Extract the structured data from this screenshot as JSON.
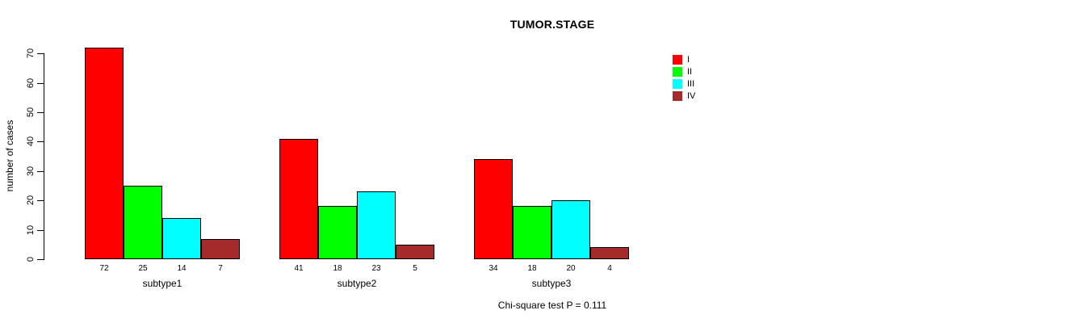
{
  "chart_data": {
    "type": "bar",
    "title": "TUMOR.STAGE",
    "ylabel": "number of cases",
    "xlabel": "",
    "footnote": "Chi-square test P = 0.111",
    "categories": [
      "subtype1",
      "subtype2",
      "subtype3"
    ],
    "series": [
      {
        "name": "I",
        "color": "#ff0000",
        "values": [
          72,
          41,
          34
        ]
      },
      {
        "name": "II",
        "color": "#00ff00",
        "values": [
          25,
          18,
          18
        ]
      },
      {
        "name": "III",
        "color": "#00ffff",
        "values": [
          14,
          23,
          20
        ]
      },
      {
        "name": "IV",
        "color": "#a52a2a",
        "values": [
          7,
          5,
          4
        ]
      }
    ],
    "y_ticks": [
      0,
      10,
      20,
      30,
      40,
      50,
      60,
      70
    ],
    "ylim": [
      0,
      72
    ],
    "grid": false,
    "legend_position": "top-right",
    "bar_value_labels_shown": true,
    "bar_border_color": "#000000",
    "background_color": "#ffffff"
  }
}
